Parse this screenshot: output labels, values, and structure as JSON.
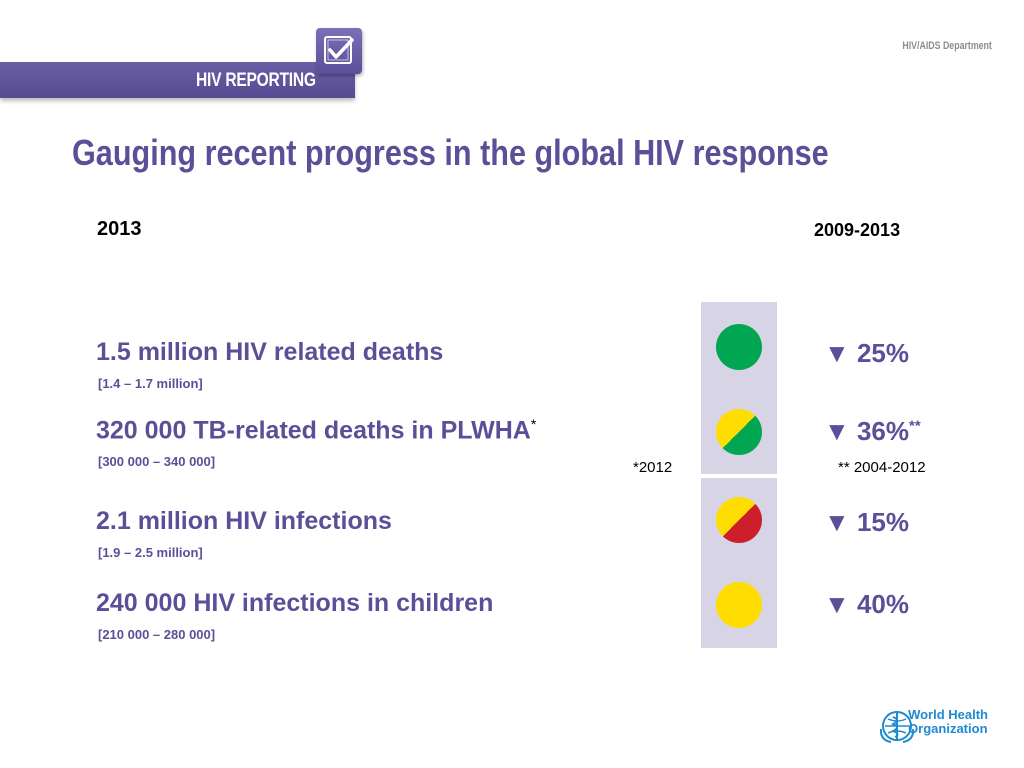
{
  "header": {
    "logo_text": "HIV REPORTING",
    "department": "HIV/AIDS Department"
  },
  "slide": {
    "title": "Gauging recent progress in the global HIV response",
    "col_left_year": "2013",
    "col_right_year": "2009-2013"
  },
  "rows": [
    {
      "main": "1.5 million HIV related deaths",
      "range": "[1.4 – 1.7 million]",
      "change": "▼ 25%",
      "light": "green"
    },
    {
      "main": "320 000 TB-related deaths in PLWHA",
      "main_mark": "*",
      "range": "[300 000 – 340 000]",
      "change": "▼ 36%",
      "change_mark": "**",
      "note_left": "*2012",
      "note_right": "** 2004-2012",
      "light": "yellow-green"
    },
    {
      "main": "2.1 million  HIV infections",
      "range": "[1.9 – 2.5 million]",
      "change": "▼ 15%",
      "light": "yellow-red"
    },
    {
      "main": "240 000 HIV infections in children",
      "range": "[210 000 – 280 000]",
      "change": "▼ 40%",
      "light": "yellow"
    }
  ],
  "footer": {
    "org_line1": "World Health",
    "org_line2": "Organization"
  },
  "colors": {
    "brand_purple": "#5b4f98",
    "green": "#00a651",
    "yellow": "#ffdd00",
    "red": "#cc1f2b",
    "column_band": "#d7d4e6"
  }
}
